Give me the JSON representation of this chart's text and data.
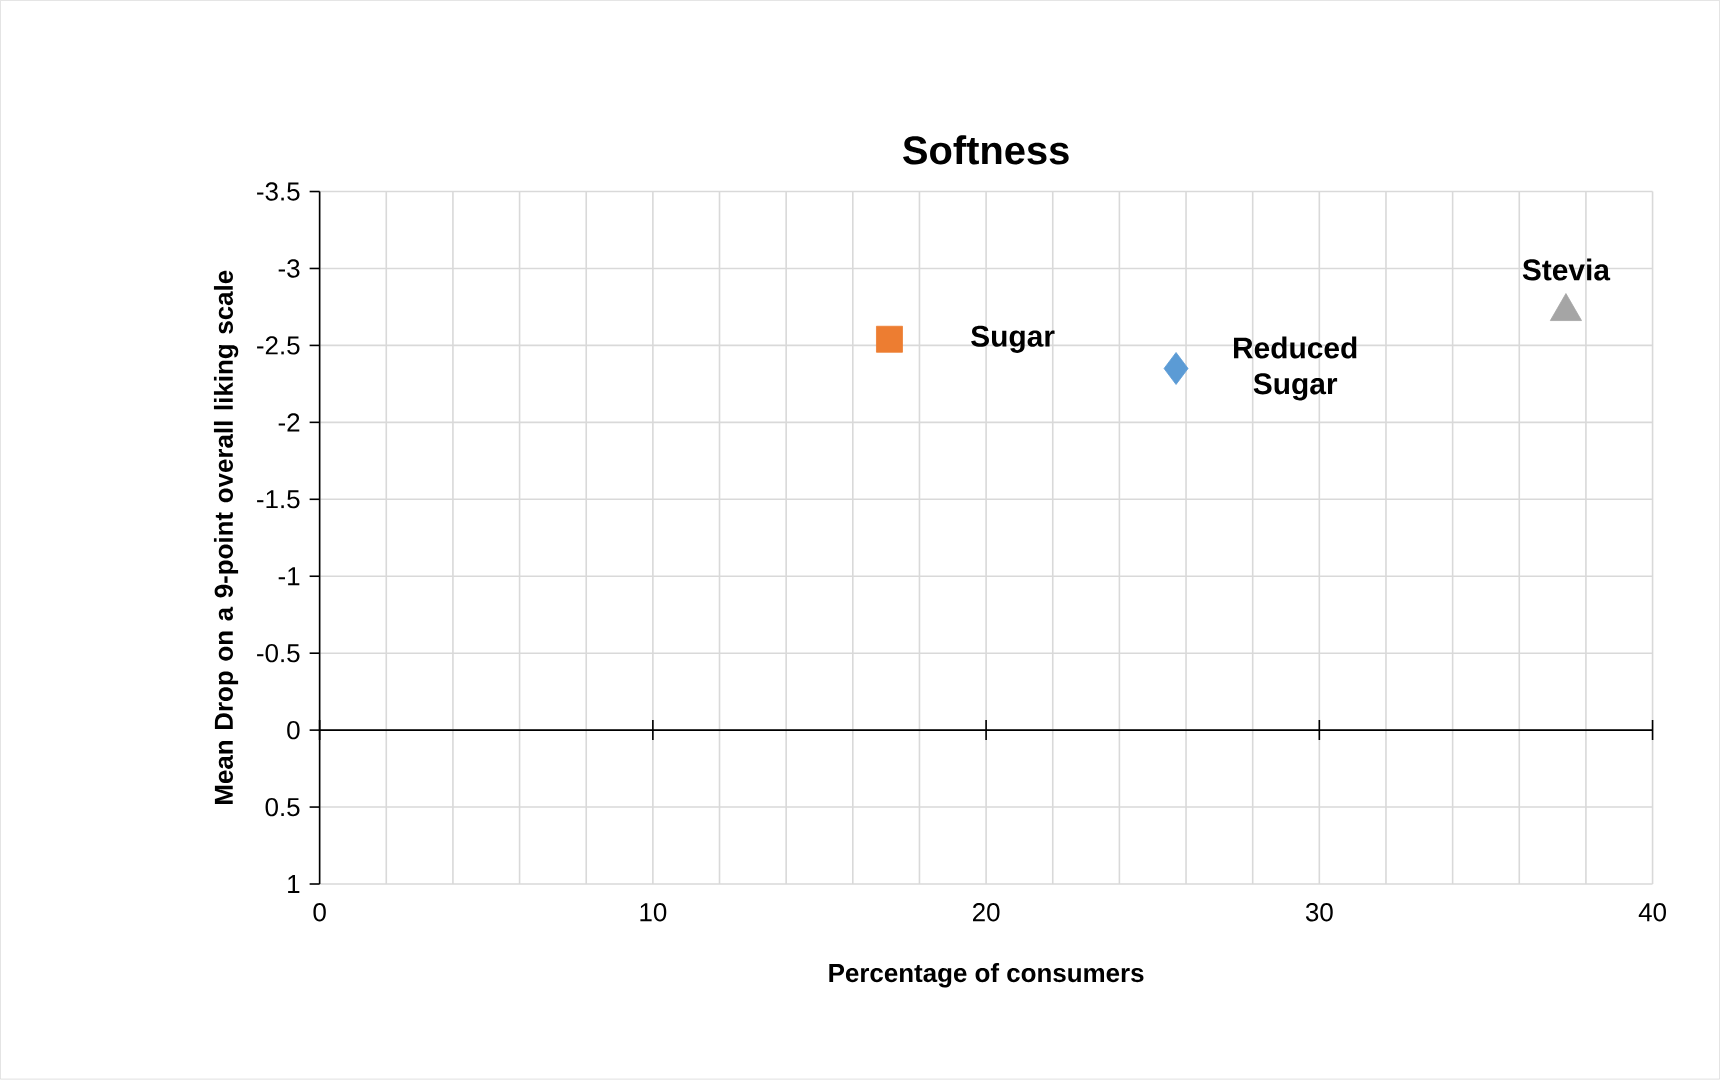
{
  "chart_data": {
    "type": "scatter",
    "title": "Softness",
    "xlabel": "Percentage of consumers",
    "ylabel": "Mean Drop on a 9-point overall liking scale",
    "series": [
      {
        "name": "Sugar",
        "color": "#ed7d31",
        "marker": "square",
        "x": [
          17.1
        ],
        "values": [
          -2.54
        ]
      },
      {
        "name": "Reduced Sugar",
        "color": "#5b9bd5",
        "marker": "diamond",
        "x": [
          25.7
        ],
        "values": [
          -2.35
        ]
      },
      {
        "name": "Stevia",
        "color": "#a5a5a5",
        "marker": "triangle",
        "x": [
          37.4
        ],
        "values": [
          -2.72
        ]
      }
    ],
    "xlim": [
      0,
      40
    ],
    "ylim": [
      1,
      -3.5
    ],
    "xticks": [
      0,
      {
        "value": 2,
        "label": null
      },
      {
        "value": 4,
        "label": null
      },
      {
        "value": 6,
        "label": null
      },
      {
        "value": 8,
        "label": null
      },
      10,
      {
        "value": 12,
        "label": null
      },
      {
        "value": 14,
        "label": null
      },
      {
        "value": 16,
        "label": null
      },
      {
        "value": 18,
        "label": null
      },
      20,
      {
        "value": 22,
        "label": null
      },
      {
        "value": 24,
        "label": null
      },
      {
        "value": 26,
        "label": null
      },
      {
        "value": 28,
        "label": null
      },
      30,
      {
        "value": 32,
        "label": null
      },
      {
        "value": 34,
        "label": null
      },
      {
        "value": 36,
        "label": null
      },
      {
        "value": 38,
        "label": null
      },
      40
    ],
    "yticks": [
      -3.5,
      -3,
      -2.5,
      -2,
      -1.5,
      -1,
      -0.5,
      0,
      0.5,
      1
    ],
    "grid": true
  }
}
